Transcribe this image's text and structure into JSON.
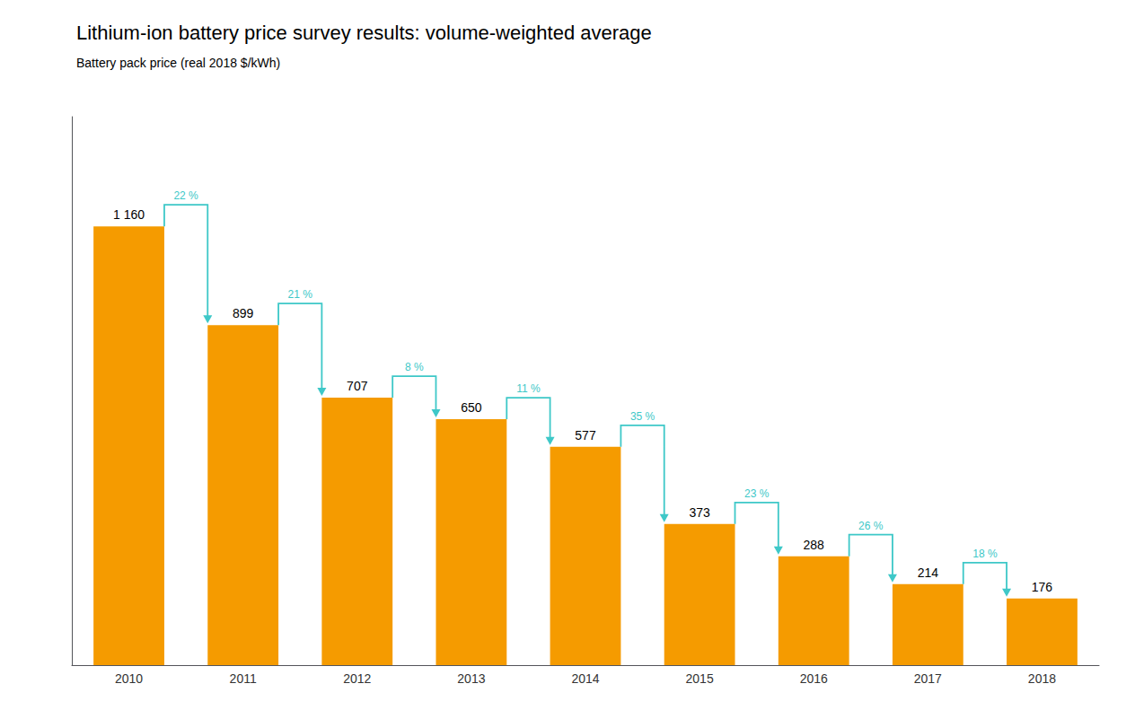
{
  "chart_data": {
    "type": "bar",
    "title": "Lithium-ion battery price survey results: volume-weighted average",
    "subtitle": "Battery pack price (real 2018 $/kWh)",
    "categories": [
      "2010",
      "2011",
      "2012",
      "2013",
      "2014",
      "2015",
      "2016",
      "2017",
      "2018"
    ],
    "values": [
      1160,
      899,
      707,
      650,
      577,
      373,
      288,
      214,
      176
    ],
    "value_labels": [
      "1 160",
      "899",
      "707",
      "650",
      "577",
      "373",
      "288",
      "214",
      "176"
    ],
    "data_labels": true,
    "color": "#F59B00",
    "annotations": [
      {
        "text": "22 %",
        "color": "#3EC8C8"
      },
      {
        "text": "21 %",
        "color": "#3EC8C8"
      },
      {
        "text": "8 %",
        "color": "#3EC8C8"
      },
      {
        "text": "11 %",
        "color": "#3EC8C8"
      },
      {
        "text": "35 %",
        "color": "#3EC8C8"
      },
      {
        "text": "23 %",
        "color": "#3EC8C8"
      },
      {
        "text": "26 %",
        "color": "#3EC8C8"
      },
      {
        "text": "18 %",
        "color": "#3EC8C8"
      }
    ],
    "ylim": [
      0,
      1450
    ],
    "tick_labels": "x",
    "grid": false
  }
}
